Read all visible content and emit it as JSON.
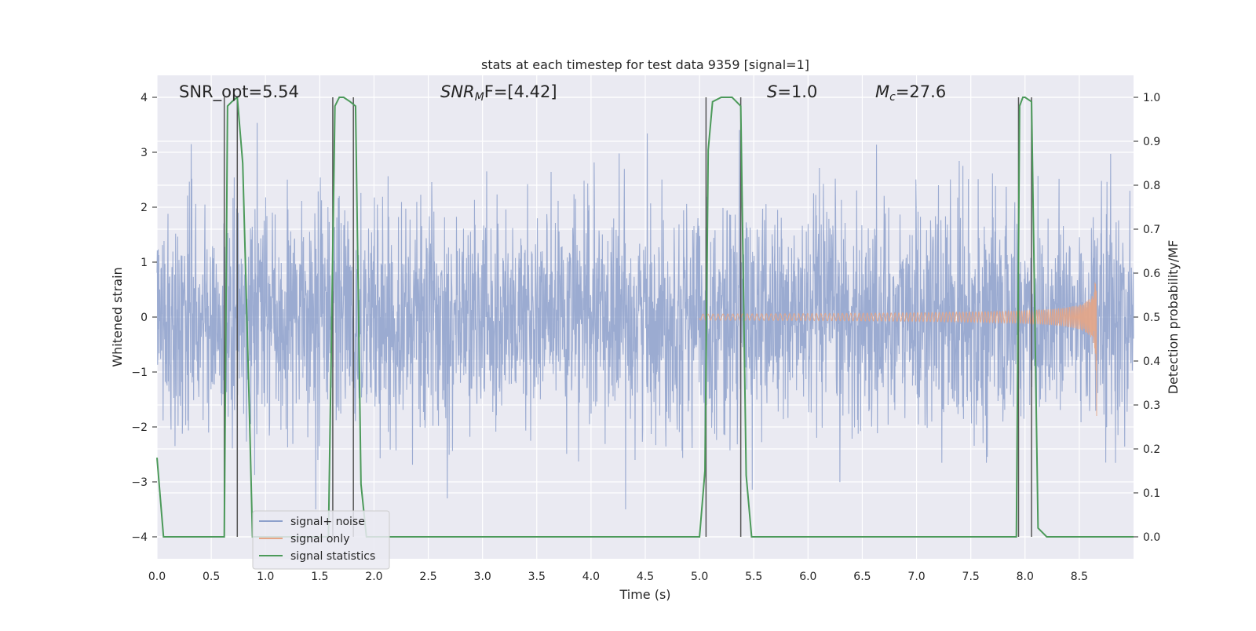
{
  "chart_data": {
    "type": "line",
    "title": "stats at each timestep for test data 9359 [signal=1]",
    "xlabel": "Time (s)",
    "ylabel": "Whitened strain",
    "ylabel_right": "Detection probability/MF",
    "xlim": [
      0,
      9.0
    ],
    "ylim": [
      -4.4,
      4.4
    ],
    "ylim_right": [
      -0.05,
      1.05
    ],
    "x_ticks": [
      0.0,
      0.5,
      1.0,
      1.5,
      2.0,
      2.5,
      3.0,
      3.5,
      4.0,
      4.5,
      5.0,
      5.5,
      6.0,
      6.5,
      7.0,
      7.5,
      8.0,
      8.5
    ],
    "x_tick_labels": [
      "0.0",
      "0.5",
      "1.0",
      "1.5",
      "2.0",
      "2.5",
      "3.0",
      "3.5",
      "4.0",
      "4.5",
      "5.0",
      "5.5",
      "6.0",
      "6.5",
      "7.0",
      "7.5",
      "8.0",
      "8.5"
    ],
    "y_ticks": [
      -4,
      -3,
      -2,
      -1,
      0,
      1,
      2,
      3,
      4
    ],
    "y_tick_labels": [
      "−4",
      "−3",
      "−2",
      "−1",
      "0",
      "1",
      "2",
      "3",
      "4"
    ],
    "y_right_ticks": [
      0.0,
      0.1,
      0.2,
      0.3,
      0.4,
      0.5,
      0.6,
      0.7,
      0.8,
      0.9,
      1.0
    ],
    "y_right_tick_labels": [
      "0.0",
      "0.1",
      "0.2",
      "0.3",
      "0.4",
      "0.5",
      "0.6",
      "0.7",
      "0.8",
      "0.9",
      "1.0"
    ],
    "grid": true,
    "legend_position": "bottom-left",
    "annotations": {
      "snr_opt": "SNR_opt=5.54",
      "snr_mf_main": "SNR",
      "snr_mf_sub": "M",
      "snr_mf_tail": "F=[4.42]",
      "s_italic": "S",
      "s_tail": "=1.0",
      "mc_main": "M",
      "mc_sub": "c",
      "mc_tail": "=27.6"
    },
    "series": [
      {
        "name": "signal+ noise",
        "color": "#8da0cb",
        "kind": "noise",
        "x_range": [
          0.0,
          9.0
        ],
        "sigma": 1.0
      },
      {
        "name": "signal only",
        "color": "#e5a585",
        "kind": "chirp",
        "x_range": [
          5.0,
          8.66
        ],
        "peak_amplitude": 1.2,
        "end_amplitude": -1.8
      },
      {
        "name": "signal statistics",
        "color": "#4c9a5a",
        "axis": "right",
        "x": [
          0.0,
          0.06,
          0.12,
          0.3,
          0.5,
          0.62,
          0.65,
          0.69,
          0.74,
          0.79,
          0.85,
          0.88,
          0.95,
          1.0,
          1.2,
          1.4,
          1.5,
          1.58,
          1.64,
          1.68,
          1.72,
          1.78,
          1.83,
          1.88,
          1.93,
          1.96,
          2.2,
          3.0,
          4.0,
          4.5,
          5.0,
          5.05,
          5.08,
          5.12,
          5.2,
          5.3,
          5.38,
          5.43,
          5.48,
          5.55,
          6.0,
          7.0,
          7.5,
          7.92,
          7.95,
          7.98,
          8.0,
          8.06,
          8.12,
          8.2,
          8.5,
          9.0
        ],
        "y": [
          0.18,
          0.0,
          0.0,
          0.0,
          0.0,
          0.0,
          0.98,
          0.99,
          1.0,
          0.85,
          0.3,
          0.0,
          0.0,
          0.0,
          0.0,
          0.0,
          0.0,
          0.0,
          0.98,
          1.0,
          1.0,
          0.99,
          0.98,
          0.12,
          0.0,
          0.0,
          0.0,
          0.0,
          0.0,
          0.0,
          0.0,
          0.15,
          0.88,
          0.99,
          1.0,
          1.0,
          0.98,
          0.14,
          0.0,
          0.0,
          0.0,
          0.0,
          0.0,
          0.0,
          0.98,
          1.0,
          1.0,
          0.99,
          0.02,
          0.0,
          0.0,
          0.0
        ]
      }
    ],
    "vertical_markers": [
      0.62,
      0.74,
      1.62,
      1.81,
      5.06,
      5.38,
      7.94,
      8.06
    ]
  }
}
